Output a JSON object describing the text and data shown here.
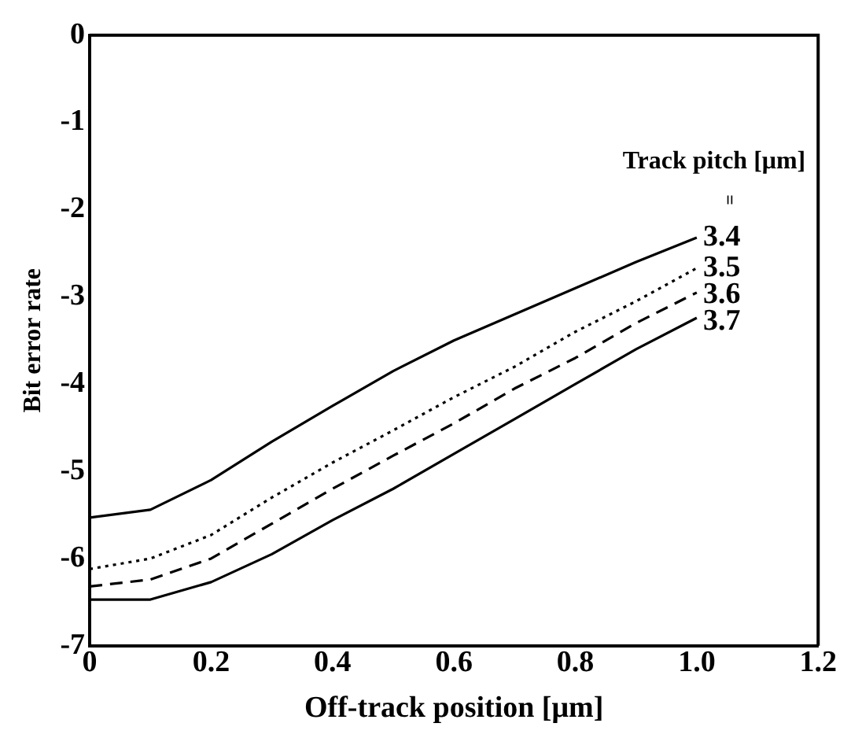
{
  "chart_data": {
    "type": "line",
    "xlabel": "Off-track position [μm]",
    "ylabel": "Bit error rate",
    "legend_title": "Track pitch [μm]",
    "annotations": [
      "="
    ],
    "xlim": [
      0,
      1.2
    ],
    "xticks": [
      0,
      0.2,
      0.4,
      0.6,
      0.8,
      {
        "value": 1,
        "label": "1.0"
      },
      1.2
    ],
    "ylim": [
      -7,
      0
    ],
    "yticks": [
      -7,
      -6,
      -5,
      -4,
      -3,
      -2,
      -1,
      0
    ],
    "grid": false,
    "legend": false,
    "marker": "none",
    "x": [
      0,
      0.1,
      0.2,
      0.3,
      0.4,
      0.5,
      0.6,
      0.7,
      0.8,
      0.9,
      1.0
    ],
    "series": [
      {
        "name": "3.4",
        "color": "#000000",
        "line_style": "solid",
        "values": [
          -5.53,
          -5.44,
          -5.1,
          -4.66,
          -4.25,
          -3.85,
          -3.5,
          -3.2,
          -2.9,
          -2.6,
          -2.32
        ]
      },
      {
        "name": "3.5",
        "color": "#000000",
        "line_style": "dotted",
        "values": [
          -6.12,
          -6.0,
          -5.73,
          -5.3,
          -4.9,
          -4.53,
          -4.15,
          -3.8,
          -3.4,
          -3.05,
          -2.67
        ]
      },
      {
        "name": "3.6",
        "color": "#000000",
        "line_style": "dashed",
        "values": [
          -6.32,
          -6.24,
          -6.0,
          -5.6,
          -5.2,
          -4.82,
          -4.45,
          -4.05,
          -3.7,
          -3.3,
          -2.95
        ]
      },
      {
        "name": "3.7",
        "color": "#000000",
        "line_style": "solid",
        "values": [
          -6.47,
          -6.47,
          -6.27,
          -5.95,
          -5.56,
          -5.2,
          -4.8,
          -4.4,
          -4.0,
          -3.6,
          -3.24
        ]
      }
    ]
  }
}
